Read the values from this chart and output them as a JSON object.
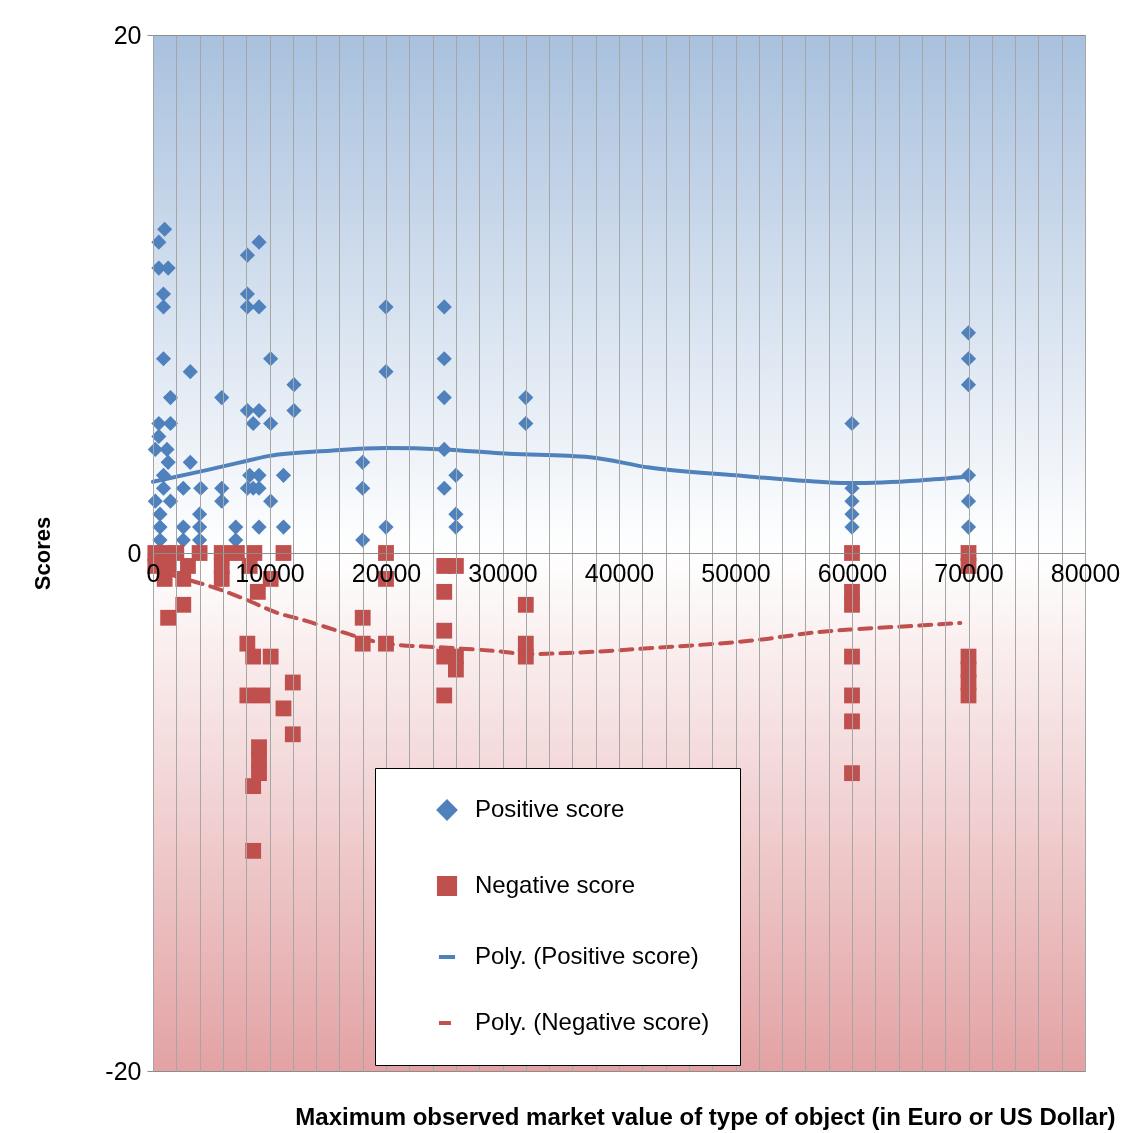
{
  "chart_data": {
    "type": "scatter",
    "xlabel": "Maximum observed market  value of type of object (in Euro or US Dollar)",
    "ylabel": "Scores",
    "xlim": [
      0,
      80000
    ],
    "ylim": [
      -20,
      20
    ],
    "xticks": [
      0,
      {
        "value": 2000,
        "label": null
      },
      {
        "value": 4000,
        "label": null
      },
      {
        "value": 6000,
        "label": null
      },
      {
        "value": 8000,
        "label": null
      },
      10000,
      {
        "value": 12000,
        "label": null
      },
      {
        "value": 14000,
        "label": null
      },
      {
        "value": 16000,
        "label": null
      },
      {
        "value": 18000,
        "label": null
      },
      20000,
      {
        "value": 22000,
        "label": null
      },
      {
        "value": 24000,
        "label": null
      },
      {
        "value": 26000,
        "label": null
      },
      {
        "value": 28000,
        "label": null
      },
      30000,
      {
        "value": 32000,
        "label": null
      },
      {
        "value": 34000,
        "label": null
      },
      {
        "value": 36000,
        "label": null
      },
      {
        "value": 38000,
        "label": null
      },
      40000,
      {
        "value": 42000,
        "label": null
      },
      {
        "value": 44000,
        "label": null
      },
      {
        "value": 46000,
        "label": null
      },
      {
        "value": 48000,
        "label": null
      },
      50000,
      {
        "value": 52000,
        "label": null
      },
      {
        "value": 54000,
        "label": null
      },
      {
        "value": 56000,
        "label": null
      },
      {
        "value": 58000,
        "label": null
      },
      60000,
      {
        "value": 62000,
        "label": null
      },
      {
        "value": 64000,
        "label": null
      },
      {
        "value": 66000,
        "label": null
      },
      {
        "value": 68000,
        "label": null
      },
      70000,
      {
        "value": 72000,
        "label": null
      },
      {
        "value": 74000,
        "label": null
      },
      {
        "value": 76000,
        "label": null
      },
      {
        "value": 78000,
        "label": null
      },
      80000
    ],
    "yticks": [
      -20,
      0,
      20
    ],
    "grid": "x",
    "legend": "bottom",
    "series": [
      {
        "name": "Positive score",
        "marker": "diamond",
        "color": "#4f81bd",
        "x": [
          1000,
          500,
          500,
          1300,
          900,
          900,
          900,
          1500,
          500,
          1500,
          500,
          200,
          1200,
          1300,
          900,
          900,
          2600,
          200,
          1500,
          600,
          4000,
          600,
          2600,
          4000,
          600,
          2600,
          4000,
          3200,
          3200,
          4100,
          5900,
          5900,
          5900,
          7100,
          7100,
          8100,
          9100,
          8100,
          8100,
          9100,
          10100,
          8100,
          9100,
          8600,
          10100,
          8300,
          9100,
          8600,
          8100,
          9100,
          10100,
          9100,
          11200,
          11200,
          12100,
          12100,
          20000,
          20000,
          20000,
          18000,
          18000,
          18000,
          25000,
          25000,
          25000,
          25000,
          25000,
          26000,
          26000,
          26000,
          32000,
          32000,
          60000,
          60000,
          60000,
          60000,
          60000,
          70000,
          70000,
          70000,
          70000,
          70000,
          70000
        ],
        "values": [
          12.5,
          12,
          11,
          11,
          10,
          9.5,
          7.5,
          6,
          5,
          5,
          4.5,
          4,
          4,
          3.5,
          3,
          2.5,
          2.5,
          2,
          2,
          1.5,
          1.5,
          1,
          1,
          1,
          0.5,
          0.5,
          0.5,
          7,
          3.5,
          2.5,
          6,
          2.5,
          2,
          1,
          0.5,
          11.5,
          12,
          10,
          9.5,
          9.5,
          7.5,
          5.5,
          5.5,
          5,
          5,
          3,
          3,
          2.5,
          2.5,
          2.5,
          2,
          1,
          3,
          1,
          6.5,
          5.5,
          9.5,
          7,
          1,
          3.5,
          2.5,
          0.5,
          9.5,
          7.5,
          6,
          4,
          2.5,
          3,
          1.5,
          1,
          6,
          5,
          5,
          2.5,
          2,
          1.5,
          1,
          8.5,
          7.5,
          6.5,
          3,
          2,
          1
        ]
      },
      {
        "name": "Negative score",
        "marker": "square",
        "color": "#c0504d",
        "x": [
          200,
          1000,
          2000,
          4000,
          5900,
          7200,
          8700,
          11200,
          200,
          1300,
          3000,
          5900,
          8300,
          1000,
          2600,
          5900,
          10100,
          9000,
          2600,
          1300,
          8100,
          8600,
          10100,
          12000,
          8100,
          9400,
          11200,
          12000,
          9100,
          9100,
          9100,
          8600,
          8600,
          20000,
          20000,
          18000,
          18000,
          20000,
          25000,
          26000,
          25000,
          25000,
          25000,
          26000,
          26000,
          25000,
          32000,
          32000,
          32000,
          60000,
          60000,
          60000,
          60000,
          60000,
          60000,
          60000,
          70000,
          70000,
          70000,
          70000,
          70000,
          70000
        ],
        "values": [
          0,
          0,
          0,
          0,
          0,
          0,
          0,
          0,
          -0.5,
          -0.5,
          -0.5,
          -0.5,
          -0.5,
          -1,
          -1,
          -1,
          -1,
          -1.5,
          -2,
          -2.5,
          -3.5,
          -4,
          -4,
          -5,
          -5.5,
          -5.5,
          -6,
          -7,
          -7.5,
          -8,
          -8.5,
          -9,
          -11.5,
          0,
          -1,
          -2.5,
          -3.5,
          -3.5,
          -0.5,
          -0.5,
          -1.5,
          -3,
          -4,
          -4,
          -4.5,
          -5.5,
          -2,
          -3.5,
          -4,
          0,
          -1.5,
          -2,
          -4,
          -5.5,
          -6.5,
          -8.5,
          0,
          -0.5,
          -4,
          -4.5,
          -5,
          -5.5
        ]
      },
      {
        "name": "Poly. (Positive score)",
        "type": "line",
        "line_style": "solid",
        "color": "#4f81bd",
        "x": [
          0,
          4600,
          7500,
          10000,
          15200,
          20000,
          25000,
          29800,
          37500,
          42600,
          50000,
          57200,
          60000,
          65800,
          70000
        ],
        "values": [
          2.75,
          3.2,
          3.5,
          3.75,
          3.95,
          4.05,
          4,
          3.85,
          3.7,
          3.3,
          3,
          2.75,
          2.7,
          2.8,
          2.95
        ]
      },
      {
        "name": "Poly. (Negative score)",
        "type": "line",
        "line_style": "dashed",
        "color": "#c0504d",
        "x": [
          0,
          2000,
          5000,
          8000,
          10600,
          13000,
          16200,
          20000,
          25000,
          29800,
          32000,
          38400,
          41800,
          52000,
          57200,
          60000,
          65800,
          69300
        ],
        "values": [
          -0.6,
          -0.9,
          -1.3,
          -1.8,
          -2.3,
          -2.6,
          -3.05,
          -3.5,
          -3.65,
          -3.8,
          -3.9,
          -3.8,
          -3.7,
          -3.35,
          -3.05,
          -2.95,
          -2.8,
          -2.7
        ]
      }
    ]
  }
}
